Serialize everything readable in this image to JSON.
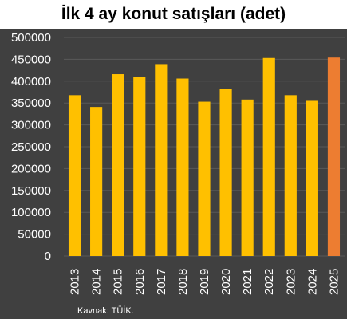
{
  "chart_data": {
    "type": "bar",
    "title": "İlk 4 ay konut satışları (adet)",
    "xlabel": "",
    "ylabel": "",
    "categories": [
      "2013",
      "2014",
      "2015",
      "2016",
      "2017",
      "2018",
      "2019",
      "2020",
      "2021",
      "2022",
      "2023",
      "2024",
      "2025"
    ],
    "values": [
      368000,
      341000,
      416000,
      410000,
      439000,
      406000,
      353000,
      383000,
      358000,
      453000,
      368000,
      355000,
      454000
    ],
    "ylim": [
      0,
      500000
    ],
    "yticks": [
      "0",
      "50000",
      "100000",
      "150000",
      "200000",
      "250000",
      "300000",
      "350000",
      "400000",
      "450000",
      "500000"
    ],
    "grid": true,
    "legend": "none",
    "colors": {
      "bar": "#FFC000",
      "highlight": "#ED7D31",
      "background": "#404040",
      "grid": "#595959",
      "text": "#FFFFFF"
    },
    "highlight_category": "2025",
    "source": "Kavnak: TÜİK."
  }
}
